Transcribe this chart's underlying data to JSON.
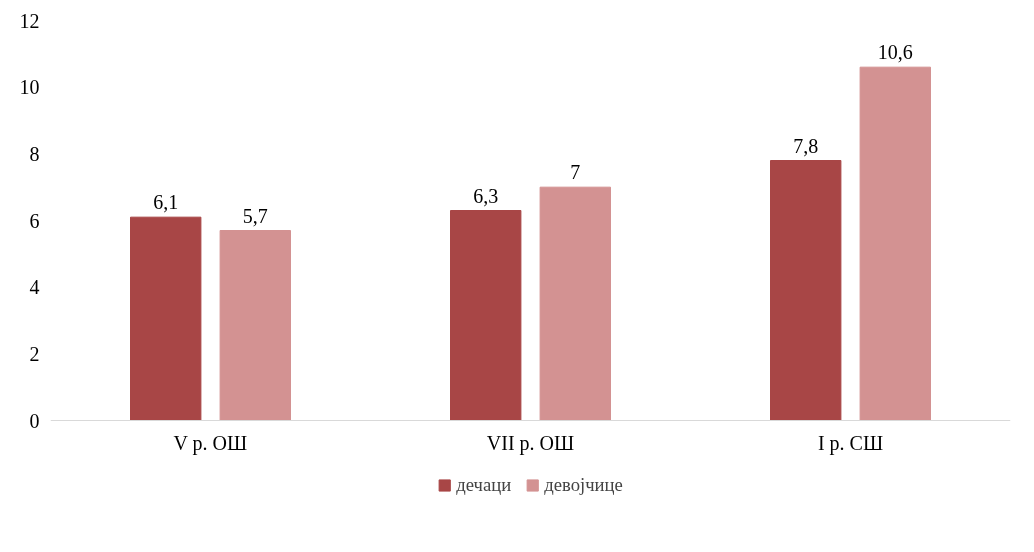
{
  "chart_data": {
    "type": "bar",
    "categories": [
      "V р. ОШ",
      "VII р. ОШ",
      "I р. СШ"
    ],
    "series": [
      {
        "name": "дечаци",
        "color": "#a84646",
        "values": [
          6.1,
          6.3,
          7.8
        ],
        "value_labels": [
          "6,1",
          "6,3",
          "7,8"
        ]
      },
      {
        "name": "девојчице",
        "color": "#d39292",
        "values": [
          5.7,
          7,
          10.6
        ],
        "value_labels": [
          "5,7",
          "7",
          "10,6"
        ]
      }
    ],
    "ylim": [
      0,
      12
    ],
    "yticks": [
      0,
      2,
      4,
      6,
      8,
      10,
      12
    ],
    "grid": false,
    "legend": "bottom"
  }
}
